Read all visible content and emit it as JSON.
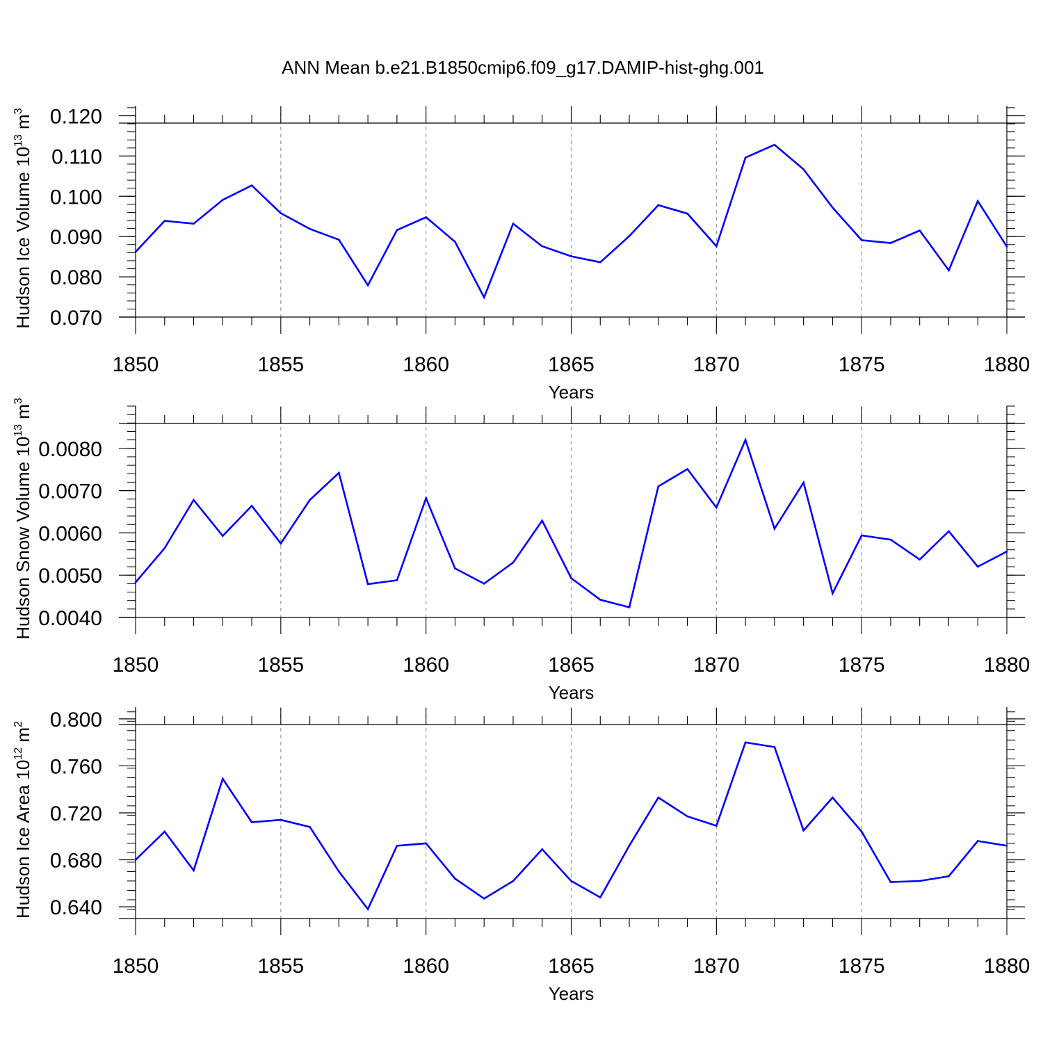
{
  "figure": {
    "title": "ANN Mean b.e21.B1850cmip6.f09_g17.DAMIP-hist-ghg.001",
    "line_color": "#0000ff",
    "grid_color": "#999999"
  },
  "chart_data": [
    {
      "type": "line",
      "xlabel": "Years",
      "ylabel": {
        "base": "Hudson Ice Volume 10",
        "exp": "13",
        "unit": " m",
        "unit_exp": "3"
      },
      "xlim": [
        1850,
        1880
      ],
      "ylim": [
        0.07,
        0.1225
      ],
      "x_ticks": [
        1850,
        1855,
        1860,
        1865,
        1870,
        1875,
        1880
      ],
      "x_tick_labels": [
        "1850",
        "1855",
        "1860",
        "1865",
        "1870",
        "1875",
        "1880"
      ],
      "y_ticks": [
        0.07,
        0.08,
        0.09,
        0.1,
        0.11,
        0.12
      ],
      "y_tick_labels": [
        "0.070",
        "0.080",
        "0.090",
        "0.100",
        "0.110",
        "0.120"
      ],
      "y_minor_step": 0.002,
      "x": [
        1850,
        1851,
        1852,
        1853,
        1854,
        1855,
        1856,
        1857,
        1858,
        1859,
        1860,
        1861,
        1862,
        1863,
        1864,
        1865,
        1866,
        1867,
        1868,
        1869,
        1870,
        1871,
        1872,
        1873,
        1874,
        1875,
        1876,
        1877,
        1878,
        1879,
        1880
      ],
      "series": [
        {
          "values": [
            0.0862,
            0.0939,
            0.0932,
            0.0991,
            0.1027,
            0.0958,
            0.0919,
            0.0892,
            0.0779,
            0.0916,
            0.0948,
            0.0887,
            0.0749,
            0.0932,
            0.0876,
            0.0851,
            0.0836,
            0.0901,
            0.0978,
            0.0957,
            0.0876,
            0.1096,
            0.1128,
            0.1067,
            0.0972,
            0.0891,
            0.0884,
            0.0915,
            0.0816,
            0.0988,
            0.0875
          ]
        }
      ]
    },
    {
      "type": "line",
      "xlabel": "Years",
      "ylabel": {
        "base": "Hudson Snow Volume 10",
        "exp": "13",
        "unit": " m",
        "unit_exp": "3"
      },
      "xlim": [
        1850,
        1880
      ],
      "ylim": [
        0.004,
        0.009
      ],
      "x_ticks": [
        1850,
        1855,
        1860,
        1865,
        1870,
        1875,
        1880
      ],
      "x_tick_labels": [
        "1850",
        "1855",
        "1860",
        "1865",
        "1870",
        "1875",
        "1880"
      ],
      "y_ticks": [
        0.004,
        0.005,
        0.006,
        0.007,
        0.008
      ],
      "y_tick_labels": [
        "0.0040",
        "0.0050",
        "0.0060",
        "0.0070",
        "0.0080"
      ],
      "y_minor_step": 0.0002,
      "x": [
        1850,
        1851,
        1852,
        1853,
        1854,
        1855,
        1856,
        1857,
        1858,
        1859,
        1860,
        1861,
        1862,
        1863,
        1864,
        1865,
        1866,
        1867,
        1868,
        1869,
        1870,
        1871,
        1872,
        1873,
        1874,
        1875,
        1876,
        1877,
        1878,
        1879,
        1880
      ],
      "series": [
        {
          "values": [
            0.00483,
            0.00564,
            0.00678,
            0.00593,
            0.00664,
            0.00575,
            0.00678,
            0.00742,
            0.00479,
            0.00488,
            0.00682,
            0.00516,
            0.0048,
            0.0053,
            0.00629,
            0.00493,
            0.00442,
            0.00424,
            0.0071,
            0.00751,
            0.0066,
            0.0082,
            0.0061,
            0.00719,
            0.00457,
            0.00594,
            0.00584,
            0.00537,
            0.00604,
            0.0052,
            0.00556
          ]
        }
      ]
    },
    {
      "type": "line",
      "xlabel": "Years",
      "ylabel": {
        "base": "Hudson Ice Area 10",
        "exp": "12",
        "unit": " m",
        "unit_exp": "2"
      },
      "xlim": [
        1850,
        1880
      ],
      "ylim": [
        0.63,
        0.81
      ],
      "x_ticks": [
        1850,
        1855,
        1860,
        1865,
        1870,
        1875,
        1880
      ],
      "x_tick_labels": [
        "1850",
        "1855",
        "1860",
        "1865",
        "1870",
        "1875",
        "1880"
      ],
      "y_ticks": [
        0.64,
        0.68,
        0.72,
        0.76,
        0.8
      ],
      "y_tick_labels": [
        "0.640",
        "0.680",
        "0.720",
        "0.760",
        "0.800"
      ],
      "y_minor_step": 0.008,
      "x": [
        1850,
        1851,
        1852,
        1853,
        1854,
        1855,
        1856,
        1857,
        1858,
        1859,
        1860,
        1861,
        1862,
        1863,
        1864,
        1865,
        1866,
        1867,
        1868,
        1869,
        1870,
        1871,
        1872,
        1873,
        1874,
        1875,
        1876,
        1877,
        1878,
        1879,
        1880
      ],
      "series": [
        {
          "values": [
            0.68,
            0.704,
            0.671,
            0.749,
            0.712,
            0.714,
            0.708,
            0.67,
            0.638,
            0.692,
            0.694,
            0.664,
            0.647,
            0.662,
            0.689,
            0.662,
            0.648,
            0.692,
            0.733,
            0.717,
            0.709,
            0.78,
            0.776,
            0.705,
            0.733,
            0.704,
            0.661,
            0.662,
            0.666,
            0.696,
            0.692
          ]
        }
      ]
    }
  ]
}
